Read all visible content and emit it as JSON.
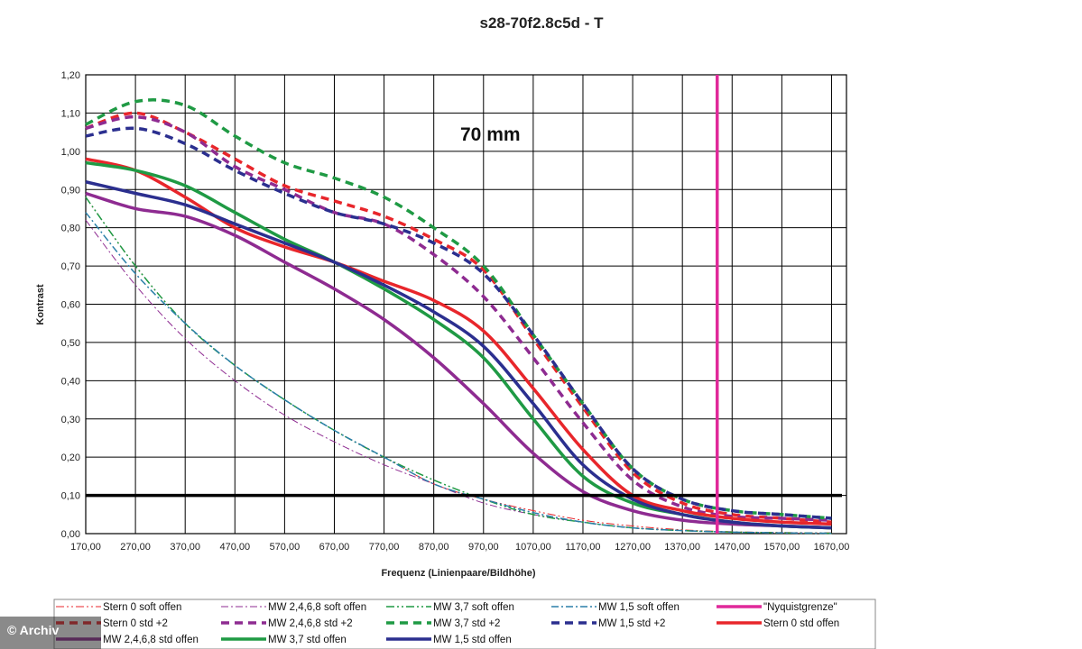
{
  "chart_data": {
    "type": "line",
    "title": "s28-70f2.8c5d - T",
    "xlabel": "Frequenz (Linienpaare/Bildhöhe)",
    "ylabel": "Kontrast",
    "xlim": [
      170,
      1700
    ],
    "ylim": [
      0,
      1.2
    ],
    "grid": true,
    "legend_position": "bottom",
    "x_ticks": [
      "170,00",
      "270,00",
      "370,00",
      "470,00",
      "570,00",
      "670,00",
      "770,00",
      "870,00",
      "970,00",
      "1070,00",
      "1170,00",
      "1270,00",
      "1370,00",
      "1470,00",
      "1570,00",
      "1670,00"
    ],
    "y_ticks": [
      "0,00",
      "0,10",
      "0,20",
      "0,30",
      "0,40",
      "0,50",
      "0,60",
      "0,70",
      "0,80",
      "0,90",
      "1,00",
      "1,10",
      "1,20"
    ],
    "annotation": "70 mm",
    "reference_line": {
      "y": 0.1,
      "color": "#000000"
    },
    "nyquist": {
      "name": "\"Nyquistgrenze\"",
      "x": 1440,
      "color": "#e0299a"
    },
    "series": [
      {
        "name": "Stern 0 soft offen",
        "color": "#e8262b",
        "style": "dashdotdot",
        "width": 1,
        "x": [
          170,
          270,
          370,
          470,
          570,
          670,
          770,
          870,
          970,
          1070,
          1170,
          1270,
          1370,
          1470,
          1570,
          1670
        ],
        "y": [
          0.88,
          0.7,
          0.55,
          0.44,
          0.35,
          0.27,
          0.2,
          0.13,
          0.09,
          0.06,
          0.035,
          0.02,
          0.01,
          0.005,
          0.003,
          0.002
        ]
      },
      {
        "name": "MW 2,4,6,8 soft offen",
        "color": "#8e2b91",
        "style": "dashdot",
        "width": 1,
        "x": [
          170,
          270,
          370,
          470,
          570,
          670,
          770,
          870,
          970,
          1070,
          1170,
          1270,
          1370,
          1470,
          1570,
          1670
        ],
        "y": [
          0.82,
          0.65,
          0.51,
          0.4,
          0.31,
          0.24,
          0.18,
          0.13,
          0.08,
          0.05,
          0.03,
          0.015,
          0.008,
          0.004,
          0.002,
          0.001
        ]
      },
      {
        "name": "MW 3,7 soft offen",
        "color": "#1f9a44",
        "style": "dashdotdot",
        "width": 1.5,
        "x": [
          170,
          270,
          370,
          470,
          570,
          670,
          770,
          870,
          970,
          1070,
          1170,
          1270,
          1370,
          1470,
          1570,
          1670
        ],
        "y": [
          0.88,
          0.7,
          0.55,
          0.44,
          0.35,
          0.27,
          0.2,
          0.14,
          0.09,
          0.05,
          0.03,
          0.015,
          0.008,
          0.004,
          0.002,
          0.001
        ]
      },
      {
        "name": "MW 1,5 soft offen",
        "color": "#2a7fa8",
        "style": "dashdot",
        "width": 1.5,
        "x": [
          170,
          270,
          370,
          470,
          570,
          670,
          770,
          870,
          970,
          1070,
          1170,
          1270,
          1370,
          1470,
          1570,
          1670
        ],
        "y": [
          0.84,
          0.68,
          0.55,
          0.44,
          0.35,
          0.27,
          0.2,
          0.13,
          0.09,
          0.055,
          0.03,
          0.015,
          0.008,
          0.004,
          0.002,
          0.001
        ]
      },
      {
        "name": "Stern 0 std +2",
        "color": "#e8262b",
        "style": "dash",
        "width": 3.5,
        "x": [
          170,
          270,
          370,
          470,
          570,
          670,
          770,
          870,
          970,
          1070,
          1170,
          1270,
          1370,
          1470,
          1570,
          1670
        ],
        "y": [
          1.06,
          1.1,
          1.05,
          0.98,
          0.91,
          0.87,
          0.83,
          0.77,
          0.69,
          0.51,
          0.33,
          0.16,
          0.08,
          0.05,
          0.04,
          0.03
        ]
      },
      {
        "name": "MW 2,4,6,8 std +2",
        "color": "#8e2b91",
        "style": "dash",
        "width": 3.5,
        "x": [
          170,
          270,
          370,
          470,
          570,
          670,
          770,
          870,
          970,
          1070,
          1170,
          1270,
          1370,
          1470,
          1570,
          1670
        ],
        "y": [
          1.06,
          1.09,
          1.05,
          0.96,
          0.9,
          0.84,
          0.81,
          0.73,
          0.62,
          0.46,
          0.29,
          0.14,
          0.07,
          0.045,
          0.04,
          0.035
        ]
      },
      {
        "name": "MW 3,7 std +2",
        "color": "#1f9a44",
        "style": "dash",
        "width": 3.5,
        "x": [
          170,
          270,
          370,
          470,
          570,
          670,
          770,
          870,
          970,
          1070,
          1170,
          1270,
          1370,
          1470,
          1570,
          1670
        ],
        "y": [
          1.07,
          1.13,
          1.12,
          1.04,
          0.97,
          0.93,
          0.88,
          0.8,
          0.7,
          0.52,
          0.34,
          0.17,
          0.09,
          0.06,
          0.05,
          0.04
        ]
      },
      {
        "name": "MW 1,5 std +2",
        "color": "#2b2f8f",
        "style": "dash",
        "width": 3.5,
        "x": [
          170,
          270,
          370,
          470,
          570,
          670,
          770,
          870,
          970,
          1070,
          1170,
          1270,
          1370,
          1470,
          1570,
          1670
        ],
        "y": [
          1.04,
          1.06,
          1.02,
          0.95,
          0.89,
          0.84,
          0.81,
          0.76,
          0.68,
          0.52,
          0.34,
          0.17,
          0.09,
          0.06,
          0.05,
          0.04
        ]
      },
      {
        "name": "Stern 0 std offen",
        "color": "#e8262b",
        "style": "solid",
        "width": 3.5,
        "x": [
          170,
          270,
          370,
          470,
          570,
          670,
          770,
          870,
          970,
          1070,
          1170,
          1270,
          1370,
          1470,
          1570,
          1670
        ],
        "y": [
          0.98,
          0.95,
          0.88,
          0.8,
          0.75,
          0.71,
          0.66,
          0.61,
          0.53,
          0.38,
          0.22,
          0.1,
          0.06,
          0.04,
          0.03,
          0.025
        ]
      },
      {
        "name": "MW 2,4,6,8 std offen",
        "color": "#8e2b91",
        "style": "solid",
        "width": 3.5,
        "x": [
          170,
          270,
          370,
          470,
          570,
          670,
          770,
          870,
          970,
          1070,
          1170,
          1270,
          1370,
          1470,
          1570,
          1670
        ],
        "y": [
          0.89,
          0.85,
          0.83,
          0.78,
          0.71,
          0.64,
          0.56,
          0.46,
          0.34,
          0.21,
          0.11,
          0.06,
          0.035,
          0.025,
          0.02,
          0.015
        ]
      },
      {
        "name": "MW 3,7 std offen",
        "color": "#1f9a44",
        "style": "solid",
        "width": 3.5,
        "x": [
          170,
          270,
          370,
          470,
          570,
          670,
          770,
          870,
          970,
          1070,
          1170,
          1270,
          1370,
          1470,
          1570,
          1670
        ],
        "y": [
          0.97,
          0.95,
          0.91,
          0.84,
          0.77,
          0.71,
          0.64,
          0.56,
          0.46,
          0.3,
          0.15,
          0.08,
          0.05,
          0.03,
          0.02,
          0.015
        ]
      },
      {
        "name": "MW 1,5 std offen",
        "color": "#2b2f8f",
        "style": "solid",
        "width": 3.5,
        "x": [
          170,
          270,
          370,
          470,
          570,
          670,
          770,
          870,
          970,
          1070,
          1170,
          1270,
          1370,
          1470,
          1570,
          1670
        ],
        "y": [
          0.92,
          0.89,
          0.86,
          0.81,
          0.76,
          0.71,
          0.65,
          0.58,
          0.49,
          0.34,
          0.18,
          0.09,
          0.05,
          0.03,
          0.02,
          0.015
        ]
      }
    ],
    "legend_order": [
      0,
      1,
      2,
      3,
      "nyquist",
      4,
      5,
      6,
      7,
      8,
      9,
      10,
      11
    ]
  },
  "watermark": "© Archiv"
}
